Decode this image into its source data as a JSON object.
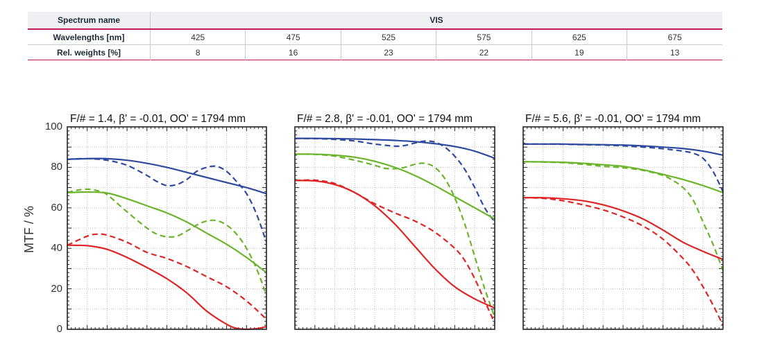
{
  "table": {
    "spectrum_name_label": "Spectrum name",
    "spectrum_name_value": "VIS",
    "wavelengths_label": "Wavelengths [nm]",
    "wavelengths": [
      "425",
      "475",
      "525",
      "575",
      "625",
      "675"
    ],
    "weights_label": "Rel. weights [%]",
    "weights": [
      "8",
      "16",
      "23",
      "22",
      "19",
      "13"
    ]
  },
  "colors": {
    "blue": "#2e4a9e",
    "green": "#6ab42a",
    "red": "#e02424",
    "grid": "#bbbbbb",
    "frame": "#222222"
  },
  "chart_data": [
    {
      "type": "line",
      "title": "F/# = 1.4, β' = -0.01, OO' = 1794 mm",
      "ylabel": "MTF / %",
      "ylim": [
        0,
        100
      ],
      "yticks": [
        "0",
        "20",
        "40",
        "60",
        "80",
        "100"
      ],
      "xlim": [
        0,
        1
      ],
      "grid": true,
      "series": [
        {
          "color": "blue",
          "style": "solid",
          "x": [
            0,
            0.1,
            0.2,
            0.3,
            0.4,
            0.5,
            0.6,
            0.7,
            0.8,
            0.9,
            1.0
          ],
          "y": [
            84,
            84.3,
            84.3,
            83.5,
            82,
            80,
            77.5,
            75,
            72.5,
            70,
            67
          ]
        },
        {
          "color": "blue",
          "style": "dashed",
          "x": [
            0,
            0.1,
            0.2,
            0.3,
            0.4,
            0.45,
            0.5,
            0.55,
            0.6,
            0.65,
            0.7,
            0.75,
            0.8,
            0.85,
            0.9,
            0.95,
            1.0
          ],
          "y": [
            84,
            84.3,
            83.5,
            81,
            76,
            73,
            71,
            71.5,
            74,
            78,
            80,
            80.5,
            78,
            73,
            67,
            57,
            43
          ]
        },
        {
          "color": "green",
          "style": "solid",
          "x": [
            0,
            0.1,
            0.2,
            0.3,
            0.4,
            0.5,
            0.6,
            0.7,
            0.8,
            0.9,
            1.0
          ],
          "y": [
            67.5,
            67.8,
            67.3,
            64.5,
            61,
            57.5,
            53,
            47.5,
            42,
            35.5,
            28
          ]
        },
        {
          "color": "green",
          "style": "dashed",
          "x": [
            0,
            0.05,
            0.1,
            0.15,
            0.2,
            0.3,
            0.4,
            0.45,
            0.5,
            0.55,
            0.6,
            0.65,
            0.7,
            0.75,
            0.8,
            0.85,
            0.9,
            0.95,
            1.0
          ],
          "y": [
            67.5,
            68.7,
            69.2,
            68.5,
            66.5,
            58,
            50,
            47,
            45.7,
            46,
            48.5,
            51.5,
            53.5,
            53.7,
            51.5,
            47,
            40,
            30,
            17
          ]
        },
        {
          "color": "red",
          "style": "solid",
          "x": [
            0,
            0.1,
            0.2,
            0.3,
            0.4,
            0.5,
            0.6,
            0.7,
            0.8,
            0.85,
            0.9,
            0.95,
            1.0
          ],
          "y": [
            41.5,
            41.3,
            39.5,
            35.5,
            30.5,
            25,
            18,
            9,
            2.5,
            0.5,
            0,
            0.3,
            1.3
          ]
        },
        {
          "color": "red",
          "style": "dashed",
          "x": [
            0,
            0.1,
            0.15,
            0.2,
            0.3,
            0.4,
            0.5,
            0.6,
            0.7,
            0.8,
            0.9,
            1.0
          ],
          "y": [
            41.5,
            46,
            47,
            46.5,
            43,
            38,
            35,
            31,
            26,
            21,
            14,
            5
          ]
        }
      ]
    },
    {
      "type": "line",
      "title": "F/# = 2.8, β' = -0.01, OO' = 1794 mm",
      "ylim": [
        0,
        100
      ],
      "xlim": [
        0,
        1
      ],
      "grid": true,
      "series": [
        {
          "color": "blue",
          "style": "solid",
          "x": [
            0,
            0.1,
            0.2,
            0.3,
            0.4,
            0.5,
            0.6,
            0.7,
            0.8,
            0.9,
            1.0
          ],
          "y": [
            94.3,
            94.3,
            94.2,
            94,
            93.7,
            93.3,
            92.7,
            91.7,
            90.3,
            88,
            84.5
          ]
        },
        {
          "color": "blue",
          "style": "dashed",
          "x": [
            0,
            0.1,
            0.2,
            0.3,
            0.4,
            0.5,
            0.55,
            0.6,
            0.65,
            0.7,
            0.75,
            0.8,
            0.85,
            0.9,
            0.95,
            1.0
          ],
          "y": [
            94.3,
            94.2,
            93.8,
            93,
            91.5,
            90.5,
            90.8,
            92,
            93,
            92.5,
            90,
            85.5,
            79,
            70,
            60,
            53
          ]
        },
        {
          "color": "green",
          "style": "solid",
          "x": [
            0,
            0.1,
            0.2,
            0.3,
            0.4,
            0.5,
            0.6,
            0.7,
            0.8,
            0.9,
            1.0
          ],
          "y": [
            86.5,
            86.5,
            86,
            85,
            83,
            80,
            76,
            71,
            65.5,
            60,
            54.5
          ]
        },
        {
          "color": "green",
          "style": "dashed",
          "x": [
            0,
            0.1,
            0.2,
            0.3,
            0.4,
            0.45,
            0.5,
            0.55,
            0.6,
            0.65,
            0.7,
            0.75,
            0.8,
            0.85,
            0.9,
            0.95,
            1.0
          ],
          "y": [
            86.5,
            86.4,
            85.5,
            83.5,
            81,
            79.5,
            79.3,
            80,
            81.5,
            82,
            80,
            74.5,
            65,
            52,
            36,
            20,
            6
          ]
        },
        {
          "color": "red",
          "style": "solid",
          "x": [
            0,
            0.1,
            0.2,
            0.3,
            0.4,
            0.5,
            0.6,
            0.7,
            0.8,
            0.9,
            1.0
          ],
          "y": [
            73.5,
            73.3,
            71.5,
            67.5,
            61,
            52,
            41,
            30,
            21,
            15,
            10.5
          ]
        },
        {
          "color": "red",
          "style": "dashed",
          "x": [
            0,
            0.1,
            0.2,
            0.3,
            0.4,
            0.5,
            0.6,
            0.7,
            0.8,
            0.85,
            0.9,
            0.95,
            1.0
          ],
          "y": [
            73.5,
            73.7,
            72,
            67.5,
            62,
            57.5,
            53.5,
            48,
            40,
            34,
            25,
            14,
            3
          ]
        }
      ]
    },
    {
      "type": "line",
      "title": "F/# = 5.6, β' = -0.01, OO' = 1794 mm",
      "ylim": [
        0,
        100
      ],
      "xlim": [
        0,
        1
      ],
      "grid": true,
      "series": [
        {
          "color": "blue",
          "style": "solid",
          "x": [
            0,
            0.1,
            0.2,
            0.3,
            0.4,
            0.5,
            0.6,
            0.7,
            0.8,
            0.9,
            1.0
          ],
          "y": [
            91.5,
            91.5,
            91.5,
            91.3,
            91.2,
            91,
            90.6,
            90,
            89.3,
            88,
            86
          ]
        },
        {
          "color": "blue",
          "style": "dashed",
          "x": [
            0,
            0.1,
            0.2,
            0.3,
            0.4,
            0.5,
            0.6,
            0.7,
            0.75,
            0.8,
            0.85,
            0.9,
            0.95,
            1.0
          ],
          "y": [
            91.5,
            91.5,
            91.4,
            91.2,
            91,
            90.6,
            90,
            89.2,
            88.6,
            88,
            87,
            84.5,
            78,
            68
          ]
        },
        {
          "color": "green",
          "style": "solid",
          "x": [
            0,
            0.1,
            0.2,
            0.3,
            0.4,
            0.5,
            0.6,
            0.7,
            0.8,
            0.9,
            1.0
          ],
          "y": [
            82.8,
            82.7,
            82.5,
            82,
            81.3,
            80.5,
            78.8,
            76.5,
            74,
            71,
            67.5
          ]
        },
        {
          "color": "green",
          "style": "dashed",
          "x": [
            0,
            0.1,
            0.2,
            0.3,
            0.4,
            0.5,
            0.6,
            0.7,
            0.75,
            0.8,
            0.85,
            0.9,
            0.95,
            1.0
          ],
          "y": [
            82.8,
            82.6,
            82.3,
            81.5,
            80.5,
            79.8,
            78.5,
            76,
            73.5,
            70,
            64,
            53,
            42,
            29
          ]
        },
        {
          "color": "red",
          "style": "solid",
          "x": [
            0,
            0.1,
            0.2,
            0.3,
            0.4,
            0.5,
            0.6,
            0.7,
            0.8,
            0.9,
            1.0
          ],
          "y": [
            65,
            65,
            64.5,
            63.5,
            61.5,
            58.5,
            54.5,
            49,
            43,
            38.5,
            34.5
          ]
        },
        {
          "color": "red",
          "style": "dashed",
          "x": [
            0,
            0.1,
            0.2,
            0.3,
            0.4,
            0.5,
            0.6,
            0.7,
            0.8,
            0.85,
            0.9,
            0.95,
            1.0
          ],
          "y": [
            65,
            64.7,
            63.5,
            61.5,
            59,
            55.5,
            51,
            44.5,
            35,
            29,
            21,
            12,
            2
          ]
        }
      ]
    }
  ]
}
